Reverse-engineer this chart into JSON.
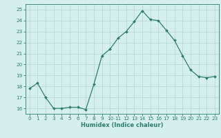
{
  "title": "",
  "xlabel": "Humidex (Indice chaleur)",
  "ylabel": "",
  "x": [
    0,
    1,
    2,
    3,
    4,
    5,
    6,
    7,
    8,
    9,
    10,
    11,
    12,
    13,
    14,
    15,
    16,
    17,
    18,
    19,
    20,
    21,
    22,
    23
  ],
  "y": [
    17.8,
    18.3,
    17.0,
    16.0,
    16.0,
    16.1,
    16.1,
    15.9,
    18.2,
    20.8,
    21.4,
    22.4,
    23.0,
    23.9,
    24.9,
    24.1,
    24.0,
    23.1,
    22.2,
    20.8,
    19.5,
    18.9,
    18.8,
    18.9
  ],
  "ylim": [
    15.5,
    25.5
  ],
  "xlim": [
    -0.5,
    23.5
  ],
  "line_color": "#2d7d6f",
  "marker_color": "#2d7d6f",
  "bg_color": "#d5efec",
  "grid_color": "#b8d9d5",
  "axis_color": "#2d7d6f",
  "tick_color": "#2d7d6f",
  "label_color": "#2d7d6f",
  "yticks": [
    16,
    17,
    18,
    19,
    20,
    21,
    22,
    23,
    24,
    25
  ],
  "xticks": [
    0,
    1,
    2,
    3,
    4,
    5,
    6,
    7,
    8,
    9,
    10,
    11,
    12,
    13,
    14,
    15,
    16,
    17,
    18,
    19,
    20,
    21,
    22,
    23
  ],
  "xlabel_fontsize": 6.0,
  "tick_fontsize": 5.2
}
